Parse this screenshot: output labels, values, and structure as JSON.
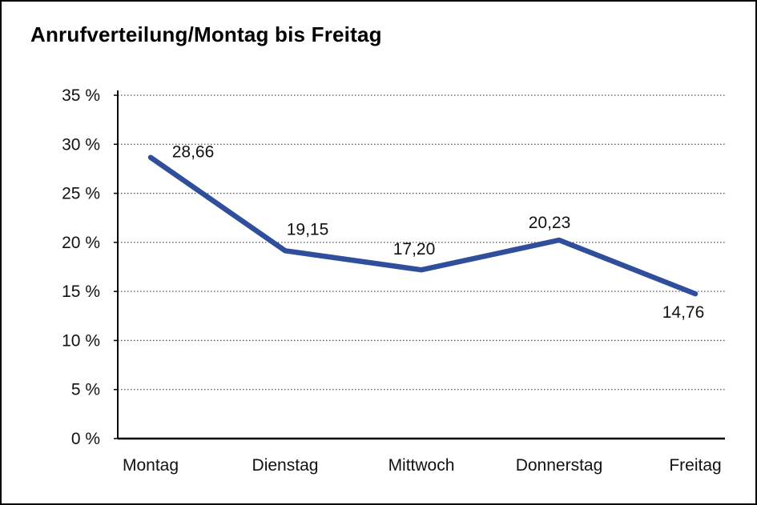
{
  "title": "Anrufverteilung/Montag bis Freitag",
  "chart_data": {
    "type": "line",
    "title": "Anrufverteilung/Montag bis Freitag",
    "categories": [
      "Montag",
      "Dienstag",
      "Mittwoch",
      "Donnerstag",
      "Freitag"
    ],
    "series": [
      {
        "name": "Anrufverteilung",
        "values": [
          28.66,
          19.15,
          17.2,
          20.23,
          14.76
        ],
        "value_labels": [
          "28,66",
          "19,15",
          "17,20",
          "20,23",
          "14,76"
        ],
        "label_offsets": [
          [
            53,
            -7
          ],
          [
            28,
            -27
          ],
          [
            -9,
            -26
          ],
          [
            -12,
            -22
          ],
          [
            -15,
            23
          ]
        ]
      }
    ],
    "xlabel": "",
    "ylabel": "",
    "ylim": [
      0,
      35
    ],
    "y_tick_step": 5,
    "y_tick_values": [
      0,
      5,
      10,
      15,
      20,
      25,
      30,
      35
    ],
    "y_tick_labels": [
      "0 %",
      "5 %",
      "10 %",
      "15 %",
      "20 %",
      "25 %",
      "30 %",
      "35 %"
    ],
    "grid": "horizontal-dotted",
    "legend": "none"
  },
  "colors": {
    "line": "#2F4F9D",
    "text": "#111111",
    "grid": "#555555",
    "axis": "#000000",
    "frame": "#000000",
    "background": "#ffffff"
  }
}
